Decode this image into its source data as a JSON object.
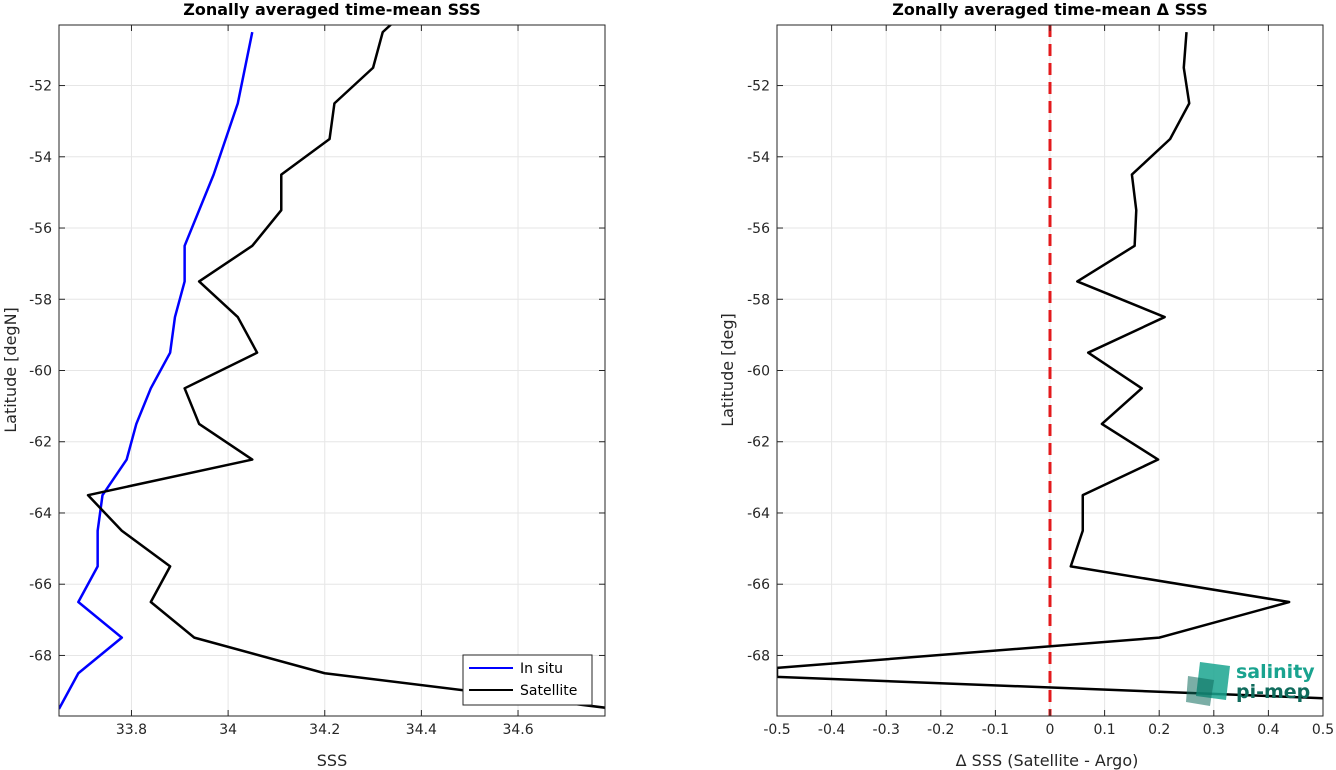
{
  "chart_data": [
    {
      "type": "line",
      "title": "Zonally averaged time-mean SSS",
      "xlabel": "SSS",
      "ylabel": "Latitude [degN]",
      "xlim": [
        33.65,
        34.78
      ],
      "ylim": [
        -69.7,
        -50.3
      ],
      "xticks": [
        33.8,
        34,
        34.2,
        34.4,
        34.6
      ],
      "xtick_labels": [
        "33.8",
        "34",
        "34.2",
        "34.4",
        "34.6"
      ],
      "yticks": [
        -68,
        -66,
        -64,
        -62,
        -60,
        -58,
        -56,
        -54,
        -52
      ],
      "ytick_labels": [
        "-68",
        "-66",
        "-64",
        "-62",
        "-60",
        "-58",
        "-56",
        "-54",
        "-52"
      ],
      "grid": true,
      "legend_position": "bottom-right",
      "series": [
        {
          "name": "In situ",
          "color": "#0000ff",
          "points": [
            [
              34.05,
              -50.5
            ],
            [
              34.02,
              -52.5
            ],
            [
              33.97,
              -54.5
            ],
            [
              33.91,
              -56.5
            ],
            [
              33.91,
              -57.5
            ],
            [
              33.89,
              -58.5
            ],
            [
              33.88,
              -59.5
            ],
            [
              33.84,
              -60.5
            ],
            [
              33.81,
              -61.5
            ],
            [
              33.79,
              -62.5
            ],
            [
              33.74,
              -63.5
            ],
            [
              33.73,
              -64.5
            ],
            [
              33.73,
              -65.5
            ],
            [
              33.69,
              -66.5
            ],
            [
              33.78,
              -67.5
            ],
            [
              33.69,
              -68.5
            ],
            [
              33.65,
              -69.5
            ]
          ]
        },
        {
          "name": "Satellite",
          "color": "#000000",
          "points": [
            [
              34.36,
              -50
            ],
            [
              34.32,
              -50.5
            ],
            [
              34.3,
              -51.5
            ],
            [
              34.22,
              -52.5
            ],
            [
              34.21,
              -53.5
            ],
            [
              34.11,
              -54.5
            ],
            [
              34.11,
              -55.5
            ],
            [
              34.05,
              -56.5
            ],
            [
              33.94,
              -57.5
            ],
            [
              34.02,
              -58.5
            ],
            [
              34.06,
              -59.5
            ],
            [
              33.91,
              -60.5
            ],
            [
              33.94,
              -61.5
            ],
            [
              34.05,
              -62.5
            ],
            [
              33.71,
              -63.5
            ],
            [
              33.78,
              -64.5
            ],
            [
              33.88,
              -65.5
            ],
            [
              33.84,
              -66.5
            ],
            [
              33.93,
              -67.5
            ],
            [
              34.2,
              -68.5
            ],
            [
              34.8,
              -69.5
            ]
          ]
        }
      ]
    },
    {
      "type": "line",
      "title": "Zonally averaged time-mean Δ SSS",
      "xlabel": "Δ SSS (Satellite - Argo)",
      "ylabel": "Latitude [deg]",
      "xlim": [
        -0.5,
        0.5
      ],
      "ylim": [
        -69.7,
        -50.3
      ],
      "xticks": [
        -0.5,
        -0.4,
        -0.3,
        -0.2,
        -0.1,
        0,
        0.1,
        0.2,
        0.3,
        0.4,
        0.5
      ],
      "xtick_labels": [
        "-0.5",
        "-0.4",
        "-0.3",
        "-0.2",
        "-0.1",
        "0",
        "0.1",
        "0.2",
        "0.3",
        "0.4",
        "0.5"
      ],
      "yticks": [
        -68,
        -66,
        -64,
        -62,
        -60,
        -58,
        -56,
        -54,
        -52
      ],
      "ytick_labels": [
        "-68",
        "-66",
        "-64",
        "-62",
        "-60",
        "-58",
        "-56",
        "-54",
        "-52"
      ],
      "grid": true,
      "reference_line": {
        "x": 0,
        "color": "#e31a1c",
        "style": "dashed"
      },
      "series": [
        {
          "color": "#000000",
          "points": [
            [
              0.25,
              -50.5
            ],
            [
              0.245,
              -51.5
            ],
            [
              0.255,
              -52.5
            ],
            [
              0.22,
              -53.5
            ],
            [
              0.15,
              -54.5
            ],
            [
              0.158,
              -55.5
            ],
            [
              0.155,
              -56.5
            ],
            [
              0.05,
              -57.5
            ],
            [
              0.21,
              -58.5
            ],
            [
              0.07,
              -59.5
            ],
            [
              0.168,
              -60.5
            ],
            [
              0.095,
              -61.5
            ],
            [
              0.198,
              -62.5
            ],
            [
              0.06,
              -63.5
            ],
            [
              0.06,
              -64.5
            ],
            [
              0.038,
              -65.5
            ],
            [
              0.438,
              -66.5
            ],
            [
              0.2,
              -67.5
            ],
            [
              -0.5,
              -68.35
            ],
            [
              -0.5,
              -68.6
            ],
            [
              0.5,
              -69.2
            ]
          ]
        }
      ]
    }
  ],
  "logo": {
    "line1": "salinity",
    "line2": "pi-mep"
  }
}
